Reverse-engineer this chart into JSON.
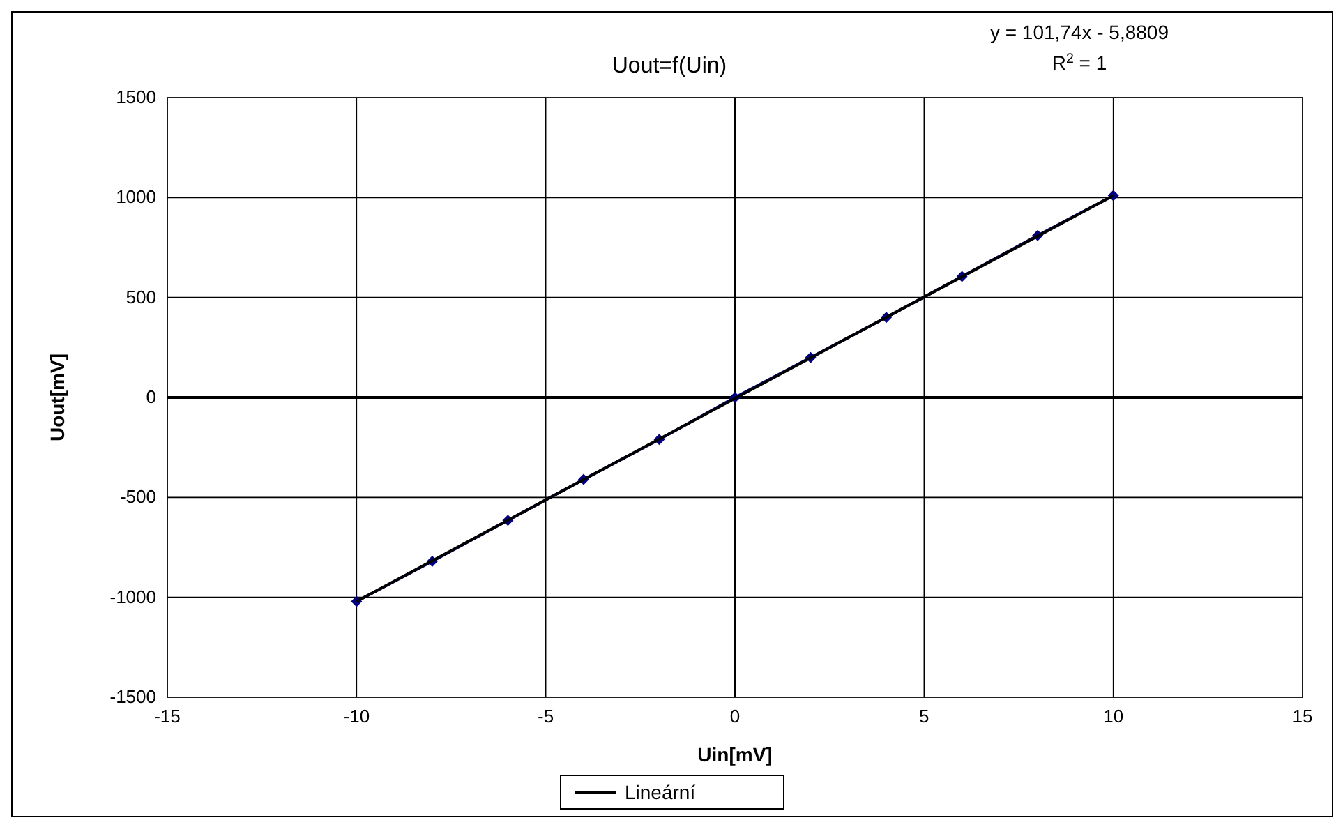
{
  "chart_data": {
    "type": "line",
    "title": "Uout=f(Uin)",
    "xlabel": "Uin[mV]",
    "ylabel": "Uout[mV]",
    "annotations": [
      "y = 101,74x - 5,8809",
      "R$^{2}$ = 1"
    ],
    "x": [
      -10,
      -8,
      -6,
      -4,
      -2,
      0,
      2,
      4,
      6,
      8,
      10
    ],
    "series": [
      {
        "color": "#000080",
        "marker": "diamond",
        "values": [
          -1020,
          -820,
          -615,
          -410,
          -210,
          0,
          200,
          400,
          605,
          810,
          1010
        ]
      },
      {
        "name": "Lineární",
        "color": "#000000",
        "marker": "none",
        "x": [
          -10,
          10
        ],
        "values": [
          -1020,
          1010
        ]
      }
    ],
    "xlim": [
      -15,
      15
    ],
    "xticks": [
      -15,
      -10,
      -5,
      0,
      5,
      10,
      15
    ],
    "ylim": [
      -1500,
      1500
    ],
    "yticks": [
      -1500,
      -1000,
      -500,
      0,
      500,
      1000,
      1500
    ],
    "grid": true,
    "legend": "bottom"
  }
}
